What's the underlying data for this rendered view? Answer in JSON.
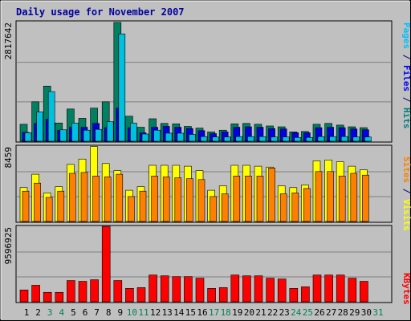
{
  "chart_data": [
    {
      "type": "bar",
      "title": "Daily usage for November 2007",
      "categories": [
        "1",
        "2",
        "3",
        "4",
        "5",
        "6",
        "7",
        "8",
        "9",
        "10",
        "11",
        "12",
        "13",
        "14",
        "15",
        "16",
        "17",
        "18",
        "19",
        "20",
        "21",
        "22",
        "23",
        "24",
        "25",
        "26",
        "27",
        "28",
        "29",
        "30",
        "31"
      ],
      "weekend_days": [
        "3",
        "4",
        "10",
        "11",
        "17",
        "18",
        "24",
        "25",
        "31"
      ],
      "ylabel_parts": [
        {
          "text": "Pages",
          "color": "#00C0FF"
        },
        {
          "text": " / ",
          "color": "#000080"
        },
        {
          "text": "Files",
          "color": "#0000FF"
        },
        {
          "text": " / ",
          "color": "#000080"
        },
        {
          "text": "Hits",
          "color": "#008080"
        }
      ],
      "ytick_label": "2817642",
      "ylim": [
        0,
        2817642
      ],
      "series": [
        {
          "name": "Hits",
          "color": "#008060",
          "values": [
            400000,
            930000,
            1300000,
            430000,
            760000,
            540000,
            780000,
            930000,
            2800000,
            590000,
            330000,
            530000,
            420000,
            410000,
            350000,
            310000,
            220000,
            260000,
            410000,
            420000,
            400000,
            360000,
            340000,
            220000,
            230000,
            400000,
            420000,
            380000,
            340000,
            320000,
            0
          ]
        },
        {
          "name": "Files",
          "color": "#0000E0",
          "values": [
            210000,
            420000,
            520000,
            260000,
            330000,
            330000,
            420000,
            320000,
            780000,
            320000,
            200000,
            330000,
            350000,
            330000,
            300000,
            250000,
            180000,
            220000,
            330000,
            340000,
            330000,
            300000,
            290000,
            200000,
            200000,
            320000,
            330000,
            320000,
            290000,
            270000,
            0
          ]
        },
        {
          "name": "Pages",
          "color": "#00C0E0",
          "values": [
            200000,
            690000,
            1170000,
            270000,
            430000,
            260000,
            280000,
            460000,
            2530000,
            430000,
            170000,
            260000,
            190000,
            190000,
            160000,
            110000,
            100000,
            100000,
            110000,
            110000,
            110000,
            100000,
            100000,
            90000,
            90000,
            110000,
            110000,
            110000,
            100000,
            100000,
            0
          ]
        }
      ]
    },
    {
      "type": "bar",
      "ylabel_parts": [
        {
          "text": "Sites",
          "color": "#FF8000"
        },
        {
          "text": " / ",
          "color": "#000080"
        },
        {
          "text": "Visits",
          "color": "#FFFF00"
        }
      ],
      "ytick_label": "8459",
      "ylim": [
        0,
        8459
      ],
      "series": [
        {
          "name": "Visits",
          "color": "#FFFF00",
          "values": [
            3800,
            5300,
            3200,
            3900,
            6400,
            7000,
            8400,
            6500,
            5700,
            3500,
            3900,
            6300,
            6300,
            6300,
            6200,
            5700,
            3500,
            4000,
            6300,
            6300,
            6200,
            6100,
            4000,
            3800,
            4100,
            6800,
            6900,
            6700,
            6200,
            5800,
            0
          ]
        },
        {
          "name": "Sites",
          "color": "#FF8000",
          "values": [
            3400,
            4300,
            2700,
            3400,
            5400,
            5500,
            5100,
            5000,
            5300,
            2800,
            3400,
            5100,
            5000,
            4900,
            4800,
            4700,
            2800,
            3100,
            5100,
            5100,
            5100,
            6000,
            3100,
            3200,
            3700,
            5600,
            5600,
            5100,
            5400,
            5200,
            0
          ]
        }
      ]
    },
    {
      "type": "bar",
      "ylabel_parts": [
        {
          "text": "KBytes",
          "color": "#FF0000"
        }
      ],
      "ytick_label": "9596925",
      "ylim": [
        0,
        9596925
      ],
      "series": [
        {
          "name": "KBytes",
          "color": "#FF0000",
          "values": [
            1500000,
            2100000,
            1200000,
            1200000,
            2700000,
            2600000,
            2800000,
            9590000,
            2700000,
            1700000,
            1800000,
            3400000,
            3300000,
            3200000,
            3200000,
            3000000,
            1700000,
            1800000,
            3400000,
            3300000,
            3300000,
            3000000,
            2900000,
            1700000,
            1900000,
            3400000,
            3400000,
            3400000,
            3000000,
            2600000,
            0
          ]
        }
      ]
    }
  ]
}
